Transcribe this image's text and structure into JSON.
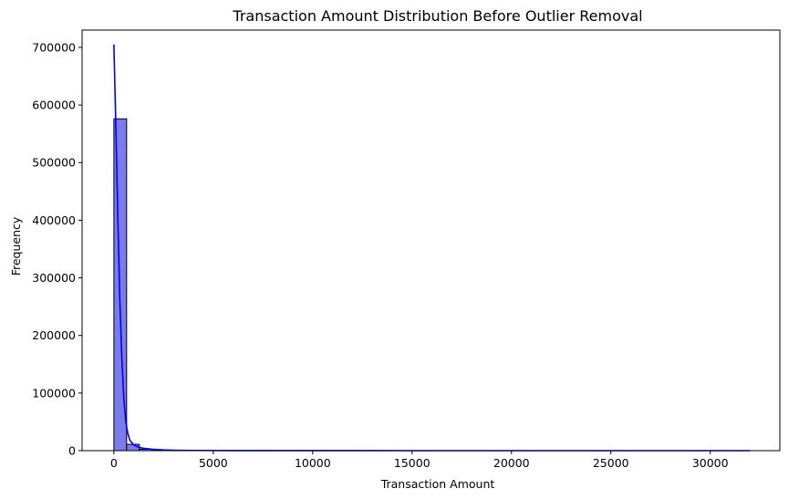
{
  "chart_data": {
    "type": "bar",
    "subtype": "histogram-with-kde",
    "title": "Transaction Amount Distribution Before Outlier Removal",
    "xlabel": "Transaction Amount",
    "ylabel": "Frequency",
    "xlim": [
      -1600,
      33500
    ],
    "ylim": [
      0,
      730000
    ],
    "xticks": [
      0,
      5000,
      10000,
      15000,
      20000,
      25000,
      30000
    ],
    "yticks": [
      0,
      100000,
      200000,
      300000,
      400000,
      500000,
      600000,
      700000
    ],
    "bin_width": 640,
    "bins": [
      {
        "x0": 0,
        "x1": 640,
        "count": 576000
      },
      {
        "x0": 640,
        "x1": 1280,
        "count": 11000
      },
      {
        "x0": 1280,
        "x1": 1920,
        "count": 2600
      },
      {
        "x0": 1920,
        "x1": 2560,
        "count": 1200
      },
      {
        "x0": 2560,
        "x1": 3200,
        "count": 600
      },
      {
        "x0": 3200,
        "x1": 3840,
        "count": 350
      },
      {
        "x0": 3840,
        "x1": 4480,
        "count": 200
      },
      {
        "x0": 4480,
        "x1": 5120,
        "count": 150
      },
      {
        "x0": 5120,
        "x1": 5760,
        "count": 100
      },
      {
        "x0": 5760,
        "x1": 6400,
        "count": 80
      },
      {
        "x0": 6400,
        "x1": 7040,
        "count": 60
      },
      {
        "x0": 7040,
        "x1": 7680,
        "count": 50
      }
    ],
    "kde": {
      "x": [
        0,
        100,
        200,
        300,
        400,
        500,
        600,
        700,
        800,
        1000,
        1200,
        1500,
        2000,
        2500,
        3000,
        4000,
        5000,
        7000,
        10000,
        15000,
        20000,
        25000,
        32000
      ],
      "y": [
        705000,
        560000,
        400000,
        260000,
        160000,
        90000,
        50000,
        30000,
        18000,
        10000,
        6500,
        4000,
        2200,
        1300,
        800,
        400,
        200,
        80,
        30,
        10,
        5,
        3,
        2
      ]
    },
    "colors": {
      "bar_fill": "#7b7bf0",
      "bar_edge": "#000000",
      "kde_line": "#0000ff"
    },
    "grid": false,
    "legend": "none"
  }
}
